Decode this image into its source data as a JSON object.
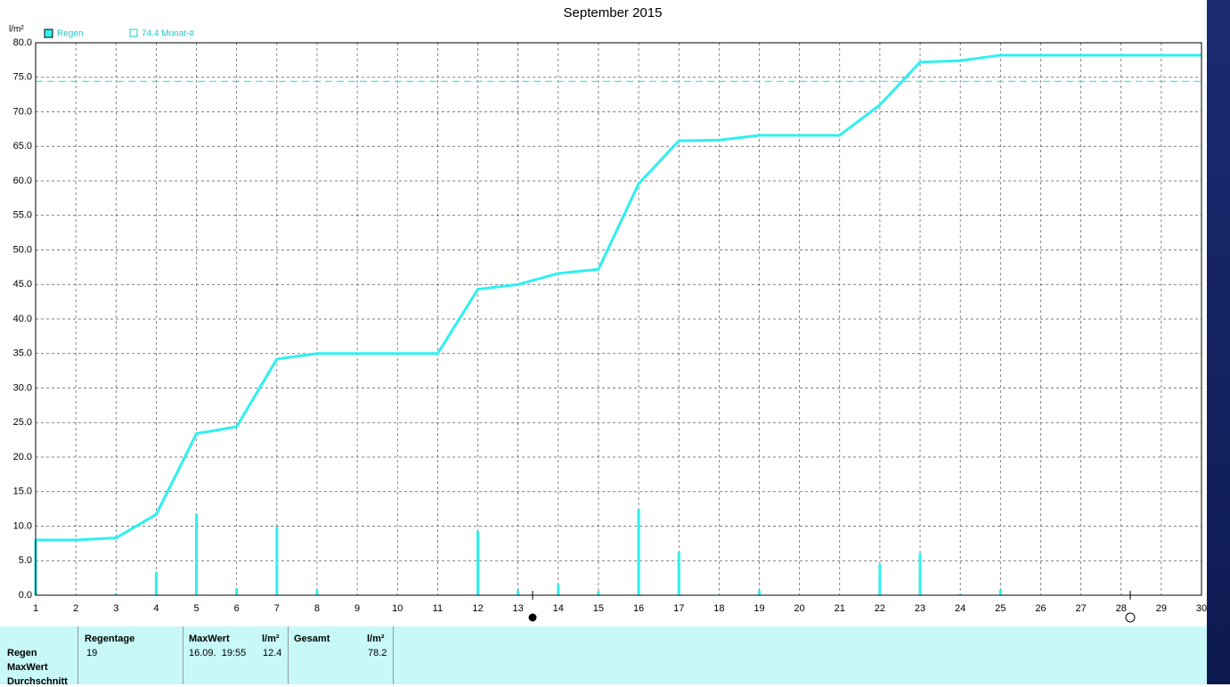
{
  "chart_data": {
    "type": "bar",
    "title": "September 2015",
    "y_label": "l/m²",
    "x": [
      1,
      2,
      3,
      4,
      5,
      6,
      7,
      8,
      9,
      10,
      11,
      12,
      13,
      14,
      15,
      16,
      17,
      18,
      19,
      20,
      21,
      22,
      23,
      24,
      25,
      26,
      27,
      28,
      29,
      30
    ],
    "series": [
      {
        "name": "Regen",
        "color": "#2ef0f0",
        "values": [
          8.0,
          0,
          0.3,
          3.4,
          11.8,
          1.0,
          9.9,
          0.8,
          0,
          0,
          0,
          9.3,
          0.7,
          1.6,
          0.6,
          12.4,
          6.2,
          0.1,
          0.7,
          0,
          0,
          4.5,
          6.1,
          0.2,
          0.8,
          0,
          0,
          0,
          0,
          0
        ],
        "cumulative": [
          8.0,
          8.0,
          8.3,
          11.7,
          23.4,
          24.4,
          34.2,
          35.0,
          35.0,
          35.0,
          35.0,
          44.3,
          45.0,
          46.6,
          47.2,
          59.6,
          65.8,
          65.9,
          66.6,
          66.6,
          66.6,
          71.0,
          77.2,
          77.4,
          78.2,
          78.2,
          78.2,
          78.2,
          78.2,
          78.2
        ]
      }
    ],
    "reference": {
      "value": 74.4,
      "label": "74.4 Monat-#",
      "color": "#2ef0f0"
    },
    "xlim": [
      1,
      30
    ],
    "xticks": [
      1,
      2,
      3,
      4,
      5,
      6,
      7,
      8,
      9,
      10,
      11,
      12,
      13,
      14,
      15,
      16,
      17,
      18,
      19,
      20,
      21,
      22,
      23,
      24,
      25,
      26,
      27,
      28,
      29,
      30
    ],
    "ylim": [
      0,
      80
    ],
    "yticks": [
      {
        "value": 0,
        "label": "0.0"
      },
      {
        "value": 5,
        "label": "5.0"
      },
      {
        "value": 10,
        "label": "10.0"
      },
      {
        "value": 15,
        "label": "15.0"
      },
      {
        "value": 20,
        "label": "20.0"
      },
      {
        "value": 25,
        "label": "25.0"
      },
      {
        "value": 30,
        "label": "30.0"
      },
      {
        "value": 35,
        "label": "35.0"
      },
      {
        "value": 40,
        "label": "40.0"
      },
      {
        "value": 45,
        "label": "45.0"
      },
      {
        "value": 50,
        "label": "50.0"
      },
      {
        "value": 55,
        "label": "55.0"
      },
      {
        "value": 60,
        "label": "60.0"
      },
      {
        "value": 65,
        "label": "65.0"
      },
      {
        "value": 70,
        "label": "70.0"
      },
      {
        "value": 75,
        "label": "75.0"
      },
      {
        "value": 80,
        "label": "80.0"
      }
    ],
    "grid": true
  },
  "table": {
    "header": [
      "Regentage",
      "MaxWert",
      "l/m²",
      "Gesamt",
      "l/m²"
    ],
    "rows": [
      {
        "label": "Regen",
        "cells": [
          19,
          "16.09.  19:55",
          12.4,
          78.2
        ]
      },
      {
        "label": "MaxWert"
      },
      {
        "label": "Durchschnitt"
      }
    ]
  }
}
